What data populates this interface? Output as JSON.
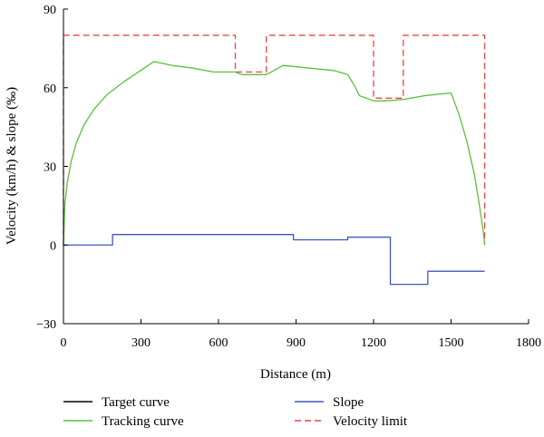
{
  "chart_data": {
    "type": "line",
    "title": "",
    "xlabel": "Distance (m)",
    "ylabel": "Velocity (km/h) & slope (‰)",
    "xlim": [
      0,
      1800
    ],
    "ylim": [
      -30,
      90
    ],
    "xticks": [
      0,
      300,
      600,
      900,
      1200,
      1500,
      1800
    ],
    "yticks": [
      -30,
      0,
      30,
      60,
      90
    ],
    "grid": false,
    "legend_placement": "bottom",
    "legend": [
      {
        "label": "Target curve",
        "color": "#000000",
        "dash": "solid"
      },
      {
        "label": "Slope",
        "color": "#3a57c4",
        "dash": "solid"
      },
      {
        "label": "Tracking curve",
        "color": "#5cbf3a",
        "dash": "solid"
      },
      {
        "label": "Velocity limit",
        "color": "#ee4444",
        "dash": "dashed"
      }
    ],
    "series": [
      {
        "name": "Velocity limit",
        "color": "#ee4444",
        "dash": "dashed",
        "x": [
          0,
          0,
          665,
          665,
          785,
          785,
          1200,
          1200,
          1315,
          1315,
          1630,
          1630
        ],
        "y": [
          0,
          80,
          80,
          66,
          66,
          80,
          80,
          56,
          56,
          80,
          80,
          0
        ]
      },
      {
        "name": "Tracking curve",
        "color": "#5cbf3a",
        "dash": "solid",
        "x": [
          0,
          5,
          15,
          30,
          50,
          80,
          120,
          170,
          230,
          290,
          350,
          420,
          500,
          580,
          665,
          690,
          785,
          850,
          950,
          1050,
          1100,
          1125,
          1145,
          1200,
          1250,
          1315,
          1400,
          1500,
          1530,
          1560,
          1590,
          1610,
          1625,
          1630
        ],
        "y": [
          0,
          15,
          24,
          32,
          39,
          46,
          52,
          57.5,
          62,
          66,
          70,
          68.5,
          67.5,
          66,
          66,
          65,
          65,
          68.5,
          67.5,
          66.5,
          65,
          61,
          57,
          55,
          55,
          55.5,
          57,
          58,
          50,
          40,
          27,
          15,
          5,
          0
        ]
      },
      {
        "name": "Slope",
        "color": "#3a57c4",
        "dash": "solid",
        "x": [
          0,
          190,
          190,
          890,
          890,
          1100,
          1100,
          1265,
          1265,
          1410,
          1410,
          1630
        ],
        "y": [
          0,
          0,
          4,
          4,
          2,
          2,
          3,
          3,
          -15,
          -15,
          -10,
          -10
        ]
      }
    ]
  }
}
